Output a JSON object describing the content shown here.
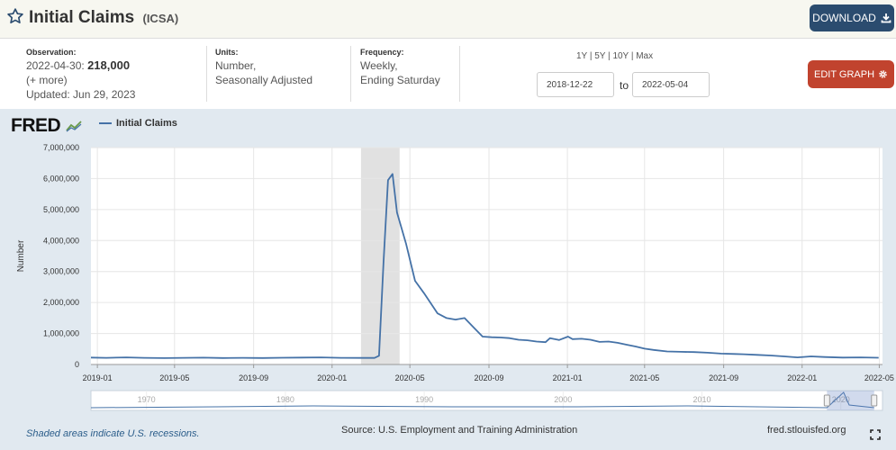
{
  "header": {
    "title": "Initial Claims",
    "series_code": "(ICSA)",
    "download_label": "DOWNLOAD"
  },
  "meta": {
    "observation_label": "Observation:",
    "observation_date": "2022-04-30:",
    "observation_value": "218,000",
    "more": "(+ more)",
    "updated": "Updated: Jun 29, 2023",
    "units_label": "Units:",
    "units_line1": "Number,",
    "units_line2": "Seasonally Adjusted",
    "frequency_label": "Frequency:",
    "frequency_line1": "Weekly,",
    "frequency_line2": "Ending Saturday",
    "range_1y": "1Y",
    "range_5y": "5Y",
    "range_10y": "10Y",
    "range_max": "Max",
    "start_date": "2018-12-22",
    "to": "to",
    "end_date": "2022-05-04",
    "edit_graph_label": "EDIT GRAPH"
  },
  "logo": "FRED",
  "footer": {
    "recession_note": "Shaded areas indicate U.S. recessions.",
    "source": "Source: U.S. Employment and Training Administration",
    "site": "fred.stlouisfed.org"
  },
  "colors": {
    "line": "#4572a7",
    "recession": "#e1e1e1",
    "header_btn": "#2b4c6f",
    "edit_btn": "#c1432e"
  },
  "chart_data": {
    "type": "line",
    "series": [
      {
        "name": "Initial Claims",
        "x": [
          "2018-12-22",
          "2019-01-15",
          "2019-02-15",
          "2019-03-15",
          "2019-04-15",
          "2019-05-15",
          "2019-06-15",
          "2019-07-15",
          "2019-08-15",
          "2019-09-15",
          "2019-10-15",
          "2019-11-15",
          "2019-12-15",
          "2020-01-15",
          "2020-02-15",
          "2020-03-07",
          "2020-03-14",
          "2020-03-21",
          "2020-03-28",
          "2020-04-04",
          "2020-04-11",
          "2020-04-25",
          "2020-05-09",
          "2020-05-23",
          "2020-06-13",
          "2020-06-27",
          "2020-07-11",
          "2020-07-25",
          "2020-08-08",
          "2020-08-22",
          "2020-09-05",
          "2020-09-19",
          "2020-10-03",
          "2020-10-17",
          "2020-10-31",
          "2020-11-14",
          "2020-11-28",
          "2020-12-05",
          "2020-12-19",
          "2021-01-02",
          "2021-01-09",
          "2021-01-23",
          "2021-02-06",
          "2021-02-20",
          "2021-03-06",
          "2021-03-20",
          "2021-04-03",
          "2021-04-17",
          "2021-05-01",
          "2021-05-15",
          "2021-06-05",
          "2021-06-26",
          "2021-07-17",
          "2021-08-07",
          "2021-08-28",
          "2021-09-18",
          "2021-10-02",
          "2021-10-23",
          "2021-11-13",
          "2021-12-04",
          "2021-12-25",
          "2022-01-15",
          "2022-02-05",
          "2022-03-05",
          "2022-04-02",
          "2022-04-30"
        ],
        "values": [
          225000,
          216000,
          230000,
          215000,
          205000,
          215000,
          220000,
          210000,
          215000,
          210000,
          218000,
          225000,
          230000,
          215000,
          212000,
          211000,
          282000,
          3300000,
          5950000,
          6150000,
          4900000,
          3900000,
          2700000,
          2300000,
          1650000,
          1500000,
          1450000,
          1500000,
          1200000,
          900000,
          880000,
          870000,
          850000,
          800000,
          780000,
          740000,
          720000,
          850000,
          790000,
          900000,
          820000,
          830000,
          800000,
          730000,
          740000,
          700000,
          640000,
          580000,
          510000,
          470000,
          420000,
          410000,
          400000,
          380000,
          350000,
          340000,
          330000,
          310000,
          290000,
          260000,
          230000,
          260000,
          240000,
          225000,
          230000,
          218000
        ]
      }
    ],
    "recessions": [
      [
        "2020-02-15",
        "2020-04-15"
      ]
    ],
    "title": "",
    "xlabel": "",
    "ylabel": "Number",
    "ylim": [
      0,
      7000000
    ],
    "yticks": [
      0,
      1000000,
      2000000,
      3000000,
      4000000,
      5000000,
      6000000,
      7000000
    ],
    "ytick_labels": [
      "0",
      "1,000,000",
      "2,000,000",
      "3,000,000",
      "4,000,000",
      "5,000,000",
      "6,000,000",
      "7,000,000"
    ],
    "xticks": [
      "2019-01-01",
      "2019-05-01",
      "2019-09-01",
      "2020-01-01",
      "2020-05-01",
      "2020-09-01",
      "2021-01-01",
      "2021-05-01",
      "2021-09-01",
      "2022-01-01",
      "2022-05-01"
    ],
    "xtick_labels": [
      "2019-01",
      "2019-05",
      "2019-09",
      "2020-01",
      "2020-05",
      "2020-09",
      "2021-01",
      "2021-05",
      "2021-09",
      "2022-01",
      "2022-05"
    ],
    "grid": true,
    "navigator_labels": [
      "1970",
      "1980",
      "1990",
      "2000",
      "2010",
      "2020"
    ]
  }
}
